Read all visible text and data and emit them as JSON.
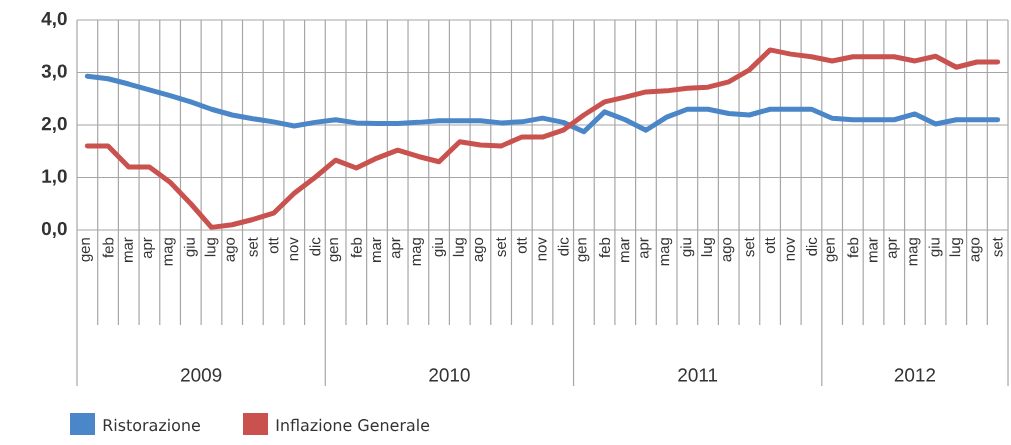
{
  "chart_data": {
    "type": "line",
    "categories": [
      "gen",
      "feb",
      "mar",
      "apr",
      "mag",
      "giu",
      "lug",
      "ago",
      "set",
      "ott",
      "nov",
      "dic",
      "gen",
      "feb",
      "mar",
      "apr",
      "mag",
      "giu",
      "lug",
      "ago",
      "set",
      "ott",
      "nov",
      "dic",
      "gen",
      "feb",
      "mar",
      "apr",
      "mag",
      "giu",
      "lug",
      "ago",
      "set",
      "ott",
      "nov",
      "dic",
      "gen",
      "feb",
      "mar",
      "apr",
      "mag",
      "giu",
      "lug",
      "ago",
      "set"
    ],
    "series": [
      {
        "name": "Ristorazione",
        "color": "#4a86c8",
        "values": [
          2.93,
          2.88,
          2.78,
          2.67,
          2.56,
          2.44,
          2.3,
          2.19,
          2.12,
          2.06,
          1.98,
          2.05,
          2.1,
          2.04,
          2.03,
          2.03,
          2.05,
          2.08,
          2.08,
          2.08,
          2.04,
          2.06,
          2.13,
          2.05,
          1.87,
          2.25,
          2.1,
          1.9,
          2.15,
          2.3,
          2.3,
          2.22,
          2.19,
          2.3,
          2.3,
          2.3,
          2.13,
          2.1,
          2.1,
          2.1,
          2.21,
          2.02,
          2.1,
          2.1,
          2.1
        ]
      },
      {
        "name": "Inflazione Generale",
        "color": "#c9524f",
        "values": [
          1.6,
          1.6,
          1.2,
          1.2,
          0.91,
          0.5,
          0.05,
          0.1,
          0.2,
          0.32,
          0.7,
          1.0,
          1.33,
          1.18,
          1.37,
          1.52,
          1.4,
          1.3,
          1.68,
          1.62,
          1.6,
          1.77,
          1.77,
          1.9,
          2.19,
          2.44,
          2.53,
          2.63,
          2.65,
          2.7,
          2.72,
          2.82,
          3.05,
          3.43,
          3.35,
          3.3,
          3.22,
          3.3,
          3.3,
          3.3,
          3.22,
          3.31,
          3.1,
          3.2,
          3.2
        ]
      }
    ],
    "ylim": [
      0,
      4
    ],
    "yticks": [
      {
        "value": 0,
        "label": "0,0"
      },
      {
        "value": 1,
        "label": "1,0"
      },
      {
        "value": 2,
        "label": "2,0"
      },
      {
        "value": 3,
        "label": "3,0"
      },
      {
        "value": 4,
        "label": "4,0"
      }
    ],
    "annotations": [
      "2009",
      "2010",
      "2011",
      "2012"
    ],
    "grid": true,
    "legend": "bottom left",
    "marker": "none",
    "line_style": "solid"
  }
}
